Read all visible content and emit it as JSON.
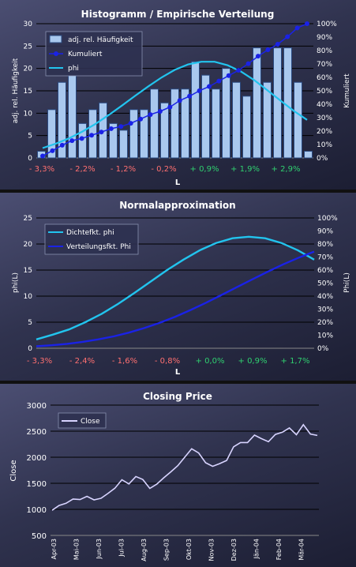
{
  "colors": {
    "bar_fill": "#a9c8ee",
    "bar_stroke": "#2b4a80",
    "cumulative": "#1a22e6",
    "phi": "#22c4ee",
    "close": "#d8d4ff",
    "neg_tick": "#ff7070",
    "pos_tick": "#30d070",
    "text": "#ffffff",
    "gridline": "#000000"
  },
  "chart_data": [
    {
      "type": "bar",
      "title": "Histogramm / Empirische Verteilung",
      "xlabel": "L",
      "ylabel": "adj. rel. Häufigkeit",
      "y2label": "Kumuliert",
      "ylim": [
        0,
        30
      ],
      "y2lim": [
        0,
        100
      ],
      "yticks": [
        "0",
        "5",
        "10",
        "15",
        "20",
        "25",
        "30"
      ],
      "y2ticks": [
        "0%",
        "10%",
        "20%",
        "30%",
        "40%",
        "50%",
        "60%",
        "70%",
        "80%",
        "90%",
        "100%"
      ],
      "xticks": [
        "- 3,3%",
        "- 2,2%",
        "- 1,2%",
        "- 0,2%",
        "+ 0,9%",
        "+ 1,9%",
        "+ 2,9%"
      ],
      "legend_position": "top-left",
      "grid": true,
      "series": [
        {
          "name": "adj. rel. Häufigkeit",
          "type": "bar",
          "values": [
            1.5,
            10.8,
            16.9,
            18.5,
            7.7,
            10.8,
            12.3,
            7.7,
            6.2,
            10.8,
            10.8,
            15.4,
            12.3,
            15.4,
            15.4,
            21.5,
            18.5,
            15.4,
            20.0,
            16.9,
            13.8,
            24.6,
            16.9,
            24.6,
            24.6,
            16.9,
            1.5
          ]
        },
        {
          "name": "Kumuliert",
          "type": "line-markers",
          "axis": "right",
          "values": [
            1.5,
            5.4,
            9.5,
            12.9,
            14.5,
            16.9,
            19.3,
            21.8,
            23.4,
            25.8,
            29.0,
            32.3,
            34.7,
            37.9,
            42.7,
            46.0,
            50.0,
            53.2,
            57.3,
            61.3,
            65.3,
            70.2,
            75.8,
            80.6,
            84.7,
            90.3,
            96.8,
            100.0
          ]
        },
        {
          "name": "phi",
          "type": "line",
          "values": [
            2.2,
            3.2,
            4.4,
            5.9,
            7.6,
            9.6,
            11.7,
            13.9,
            16.0,
            18.0,
            19.7,
            20.9,
            21.5,
            21.5,
            20.7,
            19.3,
            17.4,
            15.1,
            12.8,
            10.5,
            8.5
          ]
        }
      ]
    },
    {
      "type": "line",
      "title": "Normalapproximation",
      "xlabel": "L",
      "ylabel": "phi(L)",
      "y2label": "Phi(L)",
      "ylim": [
        0,
        25
      ],
      "y2lim": [
        0,
        100
      ],
      "yticks": [
        "0",
        "5",
        "10",
        "15",
        "20",
        "25"
      ],
      "y2ticks": [
        "0%",
        "10%",
        "20%",
        "30%",
        "40%",
        "50%",
        "60%",
        "70%",
        "80%",
        "90%",
        "100%"
      ],
      "xticks": [
        "- 3,3%",
        "- 2,4%",
        "- 1,6%",
        "- 0,8%",
        "+ 0,0%",
        "+ 0,9%",
        "+ 1,7%"
      ],
      "legend_position": "top-left",
      "grid": true,
      "series": [
        {
          "name": "Dichtefkt. phi",
          "values": [
            1.7,
            2.6,
            3.6,
            5.0,
            6.6,
            8.5,
            10.6,
            12.8,
            15.0,
            17.0,
            18.8,
            20.2,
            21.1,
            21.4,
            21.1,
            20.2,
            18.8,
            17.0
          ]
        },
        {
          "name": "Verteilungsfkt. Phi",
          "axis": "right",
          "values": [
            1.5,
            2.3,
            3.4,
            4.9,
            6.8,
            9.1,
            12.0,
            15.5,
            19.6,
            24.2,
            29.4,
            35.0,
            40.9,
            46.9,
            52.9,
            58.8,
            64.4,
            69.5,
            74.2
          ]
        }
      ]
    },
    {
      "type": "line",
      "title": "Closing Price",
      "ylabel": "Close",
      "ylim": [
        500,
        3000
      ],
      "yticks": [
        "500",
        "1000",
        "1500",
        "2000",
        "2500",
        "3000"
      ],
      "xticks": [
        "Apr-03",
        "Mai-03",
        "Jun-03",
        "Jul-03",
        "Aug-03",
        "Sep-03",
        "Okt-03",
        "Nov-03",
        "Dez-03",
        "Jän-04",
        "Feb-04",
        "Mär-04"
      ],
      "legend_position": "top-left",
      "grid": true,
      "series": [
        {
          "name": "Close",
          "values": [
            1000,
            1080,
            1110,
            1180,
            1200,
            1250,
            1170,
            1230,
            1310,
            1400,
            1550,
            1500,
            1630,
            1560,
            1420,
            1490,
            1600,
            1700,
            1850,
            2000,
            2150,
            2100,
            1900,
            1820,
            1860,
            1950,
            2200,
            2270,
            2300,
            2430,
            2350,
            2280,
            2450,
            2480,
            2550,
            2450,
            2630,
            2440,
            2400
          ]
        }
      ]
    }
  ]
}
